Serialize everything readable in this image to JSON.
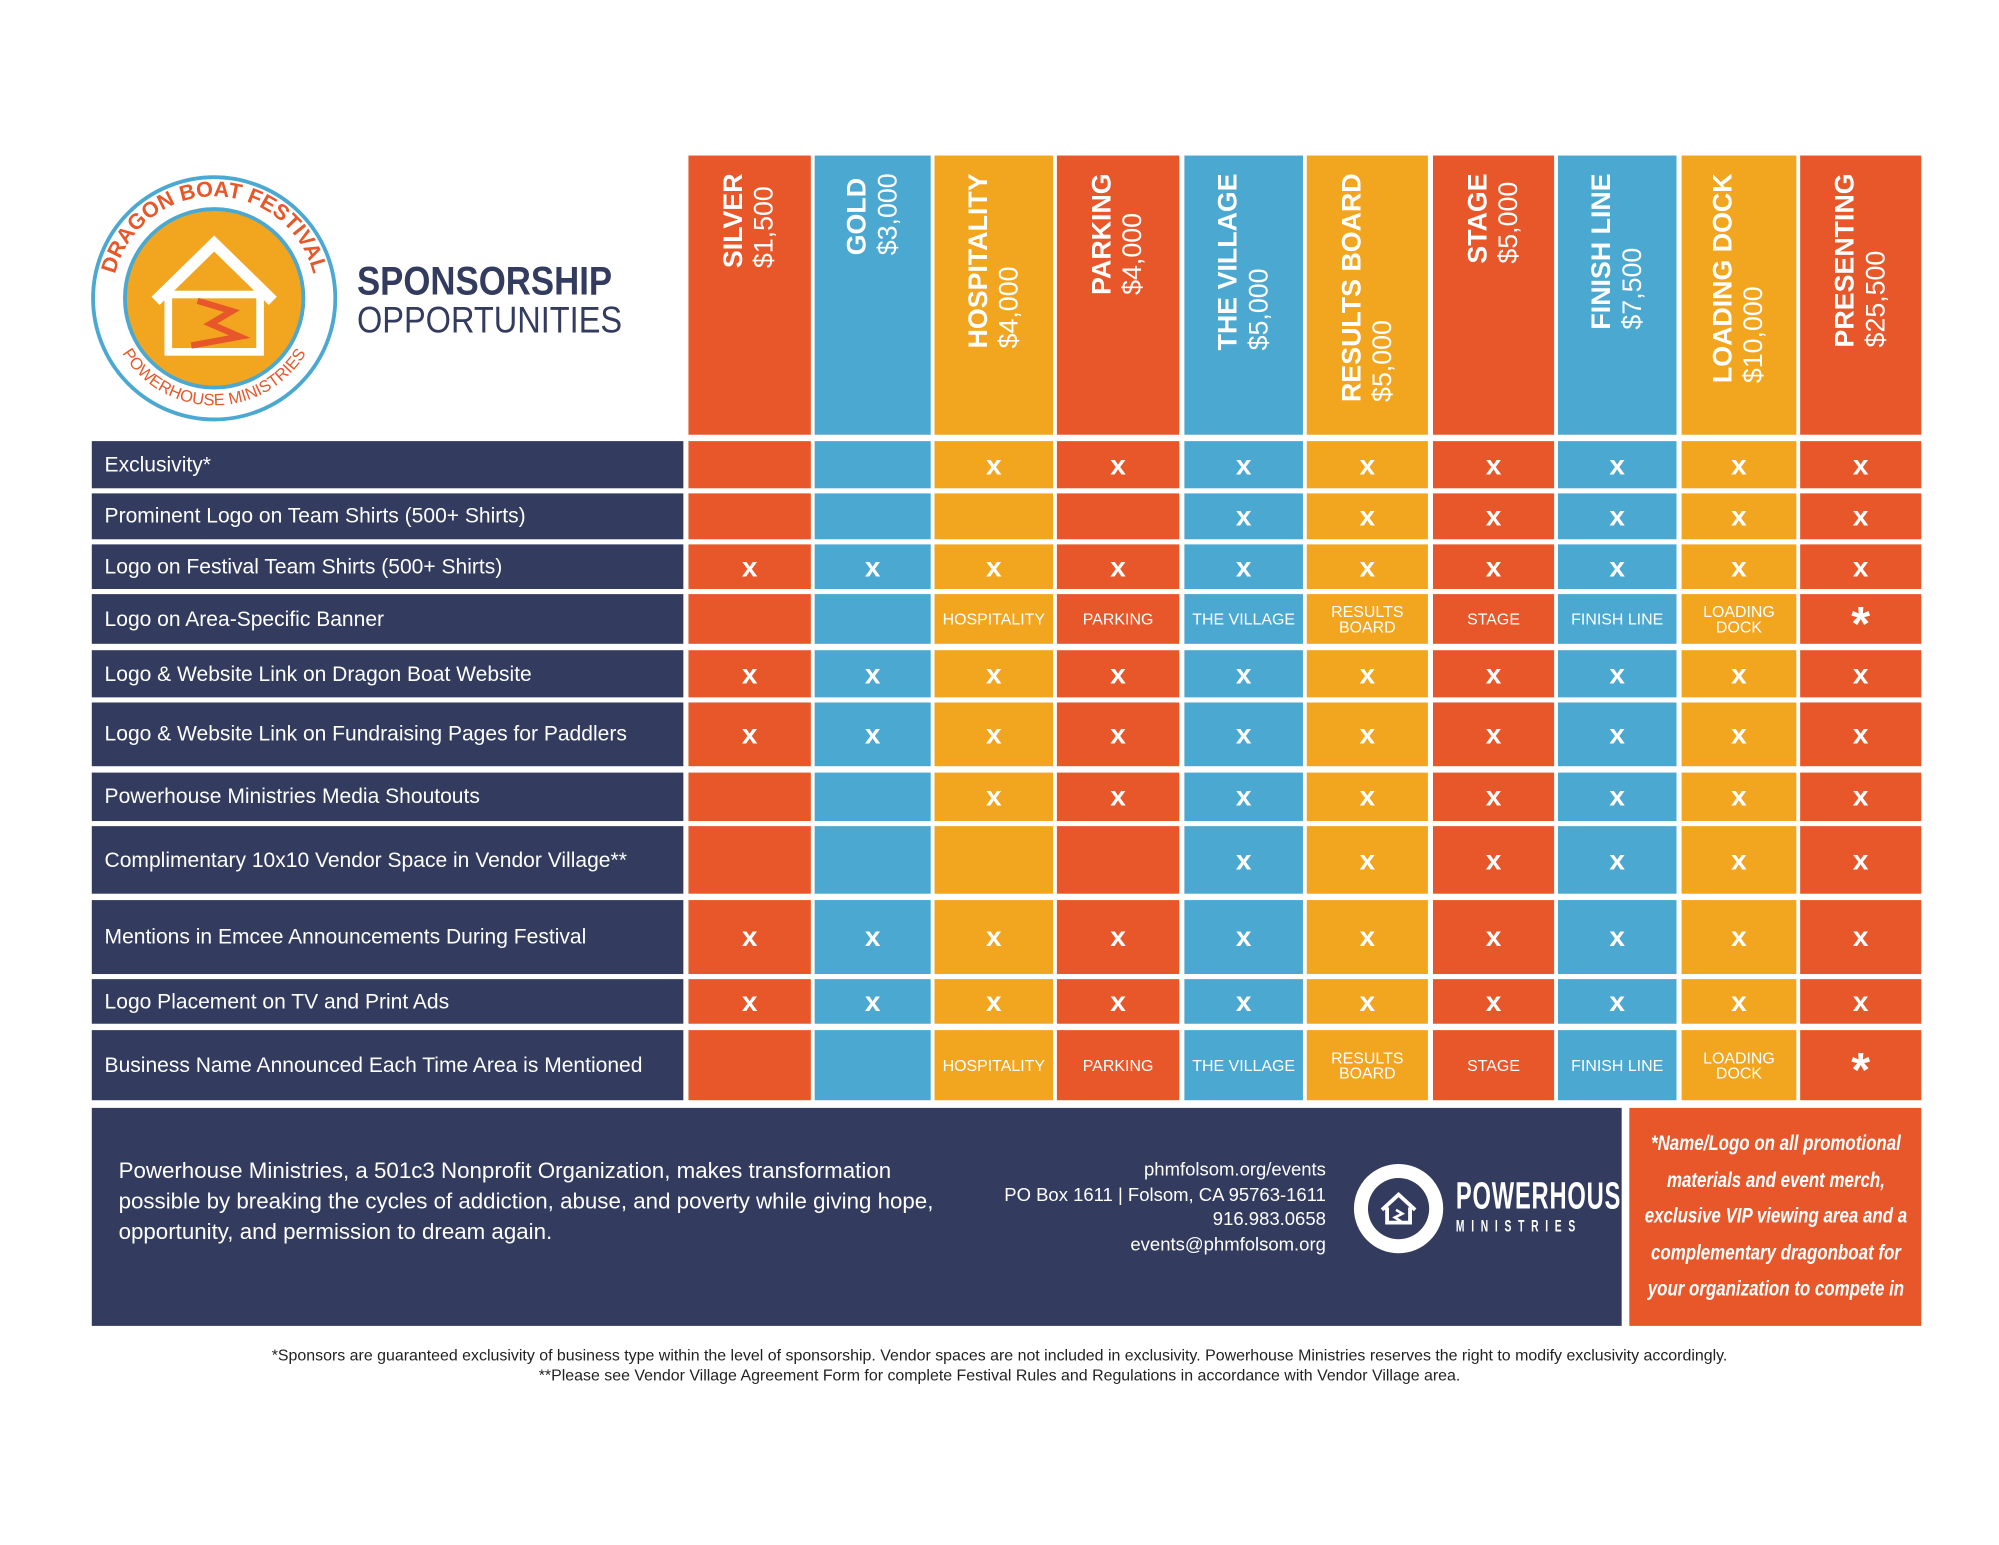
{
  "logo": {
    "top_text": "DRAGON BOAT FESTIVAL",
    "bottom_text": "POWERHOUSE MINISTRIES"
  },
  "title": {
    "line1": "SPONSORSHIP",
    "line2": "OPPORTUNITIES"
  },
  "colors": {
    "orange": "#E8572A",
    "blue": "#4BA8D1",
    "yellow": "#F2A51F",
    "navy": "#333C5E"
  },
  "tiers": [
    {
      "name": "SILVER",
      "price": "$1,500",
      "color": "#E8572A"
    },
    {
      "name": "GOLD",
      "price": "$3,000",
      "color": "#4BA8D1"
    },
    {
      "name": "HOSPITALITY",
      "price": "$4,000",
      "color": "#F2A51F"
    },
    {
      "name": "PARKING",
      "price": "$4,000",
      "color": "#E8572A"
    },
    {
      "name": "THE VILLAGE",
      "price": "$5,000",
      "color": "#4BA8D1"
    },
    {
      "name": "RESULTS BOARD",
      "price": "$5,000",
      "color": "#F2A51F"
    },
    {
      "name": "STAGE",
      "price": "$5,000",
      "color": "#E8572A"
    },
    {
      "name": "FINISH LINE",
      "price": "$7,500",
      "color": "#4BA8D1"
    },
    {
      "name": "LOADING DOCK",
      "price": "$10,000",
      "color": "#F2A51F"
    },
    {
      "name": "PRESENTING",
      "price": "$25,500",
      "color": "#E8572A"
    }
  ],
  "benefits": [
    {
      "label": "Exclusivity*",
      "values": [
        "",
        "",
        "x",
        "x",
        "x",
        "x",
        "x",
        "x",
        "x",
        "x"
      ]
    },
    {
      "label": "Prominent Logo on Team Shirts (500+ Shirts)",
      "values": [
        "",
        "",
        "",
        "",
        "x",
        "x",
        "x",
        "x",
        "x",
        "x"
      ]
    },
    {
      "label": "Logo on Festival Team Shirts (500+ Shirts)",
      "values": [
        "x",
        "x",
        "x",
        "x",
        "x",
        "x",
        "x",
        "x",
        "x",
        "x"
      ]
    },
    {
      "label": "Logo on Area-Specific Banner",
      "values": [
        "",
        "",
        "HOSPITALITY",
        "PARKING",
        "THE VILLAGE",
        "RESULTS BOARD",
        "STAGE",
        "FINISH LINE",
        "LOADING DOCK",
        "*"
      ]
    },
    {
      "label": "Logo & Website Link on Dragon Boat Website",
      "values": [
        "x",
        "x",
        "x",
        "x",
        "x",
        "x",
        "x",
        "x",
        "x",
        "x"
      ]
    },
    {
      "label": "Logo & Website Link on Fundraising Pages for Paddlers",
      "values": [
        "x",
        "x",
        "x",
        "x",
        "x",
        "x",
        "x",
        "x",
        "x",
        "x"
      ]
    },
    {
      "label": "Powerhouse Ministries Media Shoutouts",
      "values": [
        "",
        "",
        "x",
        "x",
        "x",
        "x",
        "x",
        "x",
        "x",
        "x"
      ]
    },
    {
      "label": "Complimentary 10x10 Vendor Space in Vendor Village**",
      "values": [
        "",
        "",
        "",
        "",
        "x",
        "x",
        "x",
        "x",
        "x",
        "x"
      ]
    },
    {
      "label": "Mentions in Emcee Announcements During Festival",
      "values": [
        "x",
        "x",
        "x",
        "x",
        "x",
        "x",
        "x",
        "x",
        "x",
        "x"
      ]
    },
    {
      "label": "Logo Placement on TV and Print Ads",
      "values": [
        "x",
        "x",
        "x",
        "x",
        "x",
        "x",
        "x",
        "x",
        "x",
        "x"
      ]
    },
    {
      "label": "Business Name Announced Each Time Area is Mentioned",
      "values": [
        "",
        "",
        "HOSPITALITY",
        "PARKING",
        "THE VILLAGE",
        "RESULTS BOARD",
        "STAGE",
        "FINISH LINE",
        "LOADING DOCK",
        "*"
      ]
    }
  ],
  "footer": {
    "mission": "Powerhouse Ministries, a 501c3 Nonprofit Organization, makes transformation possible by breaking the cycles of addiction, abuse, and poverty while giving hope, opportunity, and permission to dream again.",
    "website": "phmfolsom.org/events",
    "address": "PO Box 1611 | Folsom, CA 95763-1611",
    "phone": "916.983.0658",
    "email": "events@phmfolsom.org",
    "brand_line1": "POWERHOUSE",
    "brand_line2": "MINISTRIES",
    "presenting_note": "*Name/Logo on all promotional materials and event merch, exclusive VIP viewing area and a complementary dragonboat for your organization to compete in"
  },
  "disclaimers": [
    "*Sponsors are guaranteed exclusivity of business type within the level of sponsorship. Vendor spaces are not included in exclusivity. Powerhouse Ministries reserves the right to modify exclusivity accordingly.",
    "**Please see Vendor Village Agreement Form for complete Festival Rules and Regulations in accordance with Vendor Village area."
  ]
}
